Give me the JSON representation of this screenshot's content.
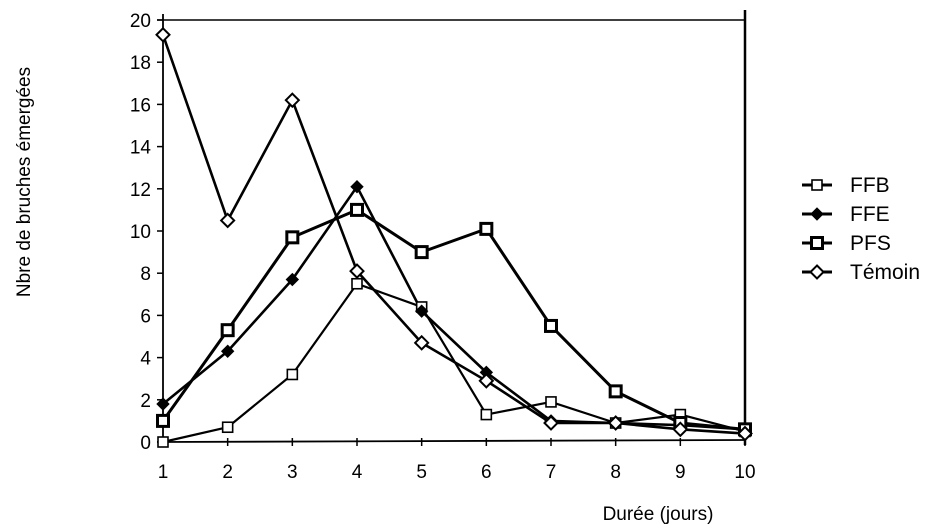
{
  "chart_data": {
    "type": "line",
    "title": "",
    "xlabel": "Durée  (jours)",
    "ylabel": "Nbre de bruches émergées",
    "x": [
      1,
      2,
      3,
      4,
      5,
      6,
      7,
      8,
      9,
      10
    ],
    "x_ticks": [
      "1",
      "2",
      "3",
      "4",
      "5",
      "6",
      "7",
      "8",
      "9",
      "10"
    ],
    "y_ticks": [
      "0",
      "2",
      "4",
      "6",
      "8",
      "10",
      "12",
      "14",
      "16",
      "18",
      "20"
    ],
    "xlim": [
      1,
      10
    ],
    "ylim": [
      0,
      20
    ],
    "grid": false,
    "legend_position": "right",
    "series": [
      {
        "name": "FFB",
        "marker": "open-square",
        "color": "#000000",
        "values": [
          0,
          0.7,
          3.2,
          7.5,
          6.4,
          1.3,
          1.9,
          0.9,
          1.3,
          0.5
        ]
      },
      {
        "name": "FFE",
        "marker": "filled-diamond",
        "color": "#000000",
        "values": [
          1.8,
          4.3,
          7.7,
          12.1,
          6.2,
          3.3,
          1.0,
          0.9,
          0.8,
          0.6
        ]
      },
      {
        "name": "PFS",
        "marker": "bold-square",
        "color": "#000000",
        "values": [
          1.0,
          5.3,
          9.7,
          11.0,
          9.0,
          10.1,
          5.5,
          2.4,
          0.9,
          0.6
        ]
      },
      {
        "name": "Témoin",
        "marker": "open-diamond",
        "color": "#000000",
        "values": [
          19.3,
          10.5,
          16.2,
          8.1,
          4.7,
          2.9,
          0.9,
          0.9,
          0.6,
          0.4
        ]
      }
    ]
  }
}
